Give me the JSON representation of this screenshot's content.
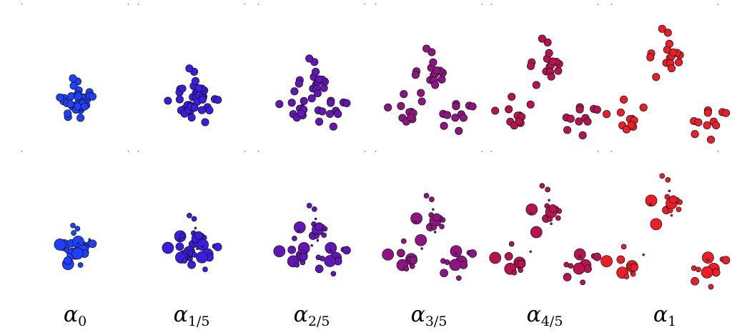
{
  "columns": [
    {
      "symbol": "α",
      "subscript": "0",
      "color": "#1f40ff"
    },
    {
      "symbol": "α",
      "subscript": "1/5",
      "color": "#3a1de0"
    },
    {
      "symbol": "α",
      "subscript": "2/5",
      "color": "#6316b6"
    },
    {
      "symbol": "α",
      "subscript": "3/5",
      "color": "#8f1482"
    },
    {
      "symbol": "α",
      "subscript": "4/5",
      "color": "#b8134e"
    },
    {
      "symbol": "α",
      "subscript": "1",
      "color": "#ee1c25"
    }
  ],
  "rows": [
    {
      "point_size": "uniform"
    },
    {
      "point_size": "varied"
    }
  ]
}
